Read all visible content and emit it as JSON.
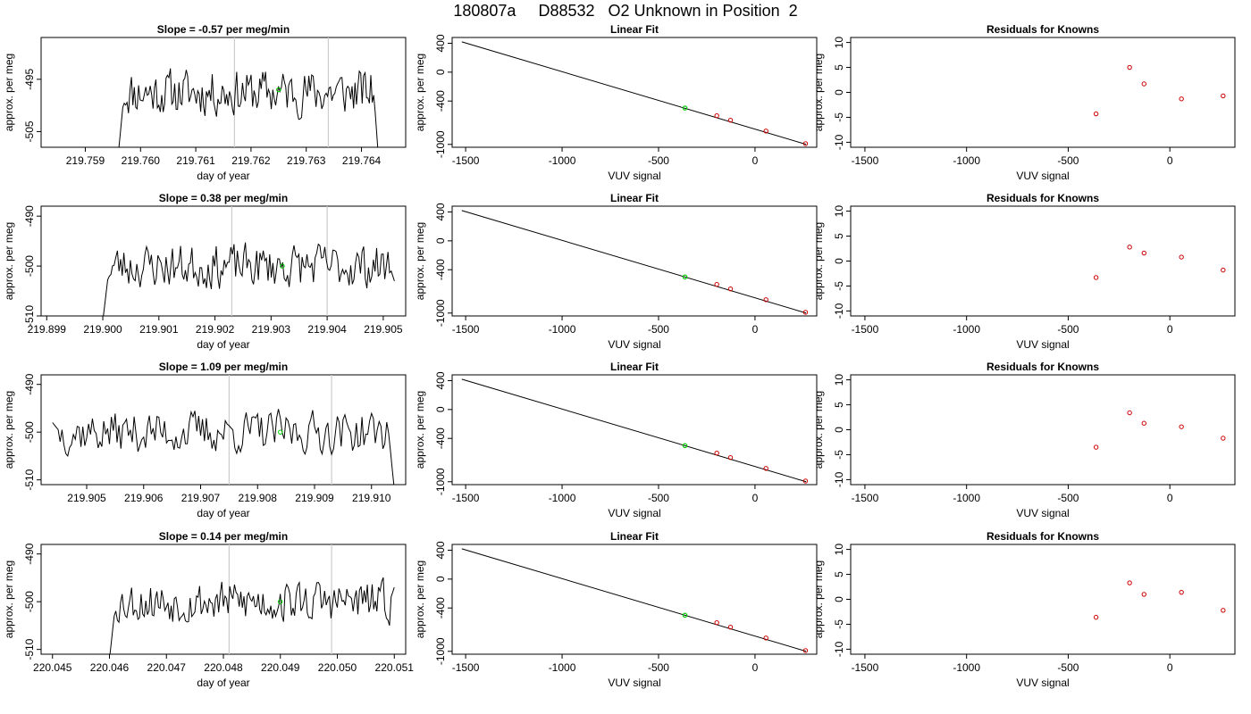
{
  "main_title": "180807a     D88532   O2 Unknown in Position  2",
  "colors": {
    "line": "#000000",
    "unknown_point": "#00cc00",
    "known_point": "#cc0000",
    "marker_line": "#cccccc"
  },
  "chart_data": [
    {
      "type": "line",
      "row": 0,
      "col": 0,
      "title": "Slope =  -0.57  per meg/min",
      "xlabel": "day of year",
      "ylabel": "approx. per meg",
      "xlim": [
        219.7582,
        219.7648
      ],
      "ylim": [
        -508,
        -487
      ],
      "xticks": [
        "219.759",
        "219.760",
        "219.761",
        "219.762",
        "219.763",
        "219.764"
      ],
      "yticks": [
        "-495",
        "-505"
      ],
      "vlines": [
        219.7617,
        219.7634
      ],
      "series_start": 219.7596,
      "series_end": 219.7643,
      "y_start": -509,
      "y_end": -509,
      "baseline": -497.5,
      "seed": 11,
      "unknown_point": {
        "x": 219.7625,
        "y": -497.0
      }
    },
    {
      "type": "line",
      "row": 1,
      "col": 0,
      "title": "Slope =  0.38  per meg/min",
      "xlabel": "day of year",
      "ylabel": "approx. per meg",
      "xlim": [
        219.8989,
        219.9054
      ],
      "ylim": [
        -510,
        -488
      ],
      "xticks": [
        "219.899",
        "219.900",
        "219.901",
        "219.902",
        "219.903",
        "219.904",
        "219.905"
      ],
      "yticks": [
        "-490",
        "-500",
        "-510"
      ],
      "vlines": [
        219.9023,
        219.904
      ],
      "series_start": 219.9,
      "series_end": 219.9052,
      "y_start": -511,
      "y_end": -503,
      "baseline": -500.0,
      "seed": 23,
      "unknown_point": {
        "x": 219.9032,
        "y": -500.0
      }
    },
    {
      "type": "line",
      "row": 2,
      "col": 0,
      "title": "Slope =  1.09  per meg/min",
      "xlabel": "day of year",
      "ylabel": "approx. per meg",
      "xlim": [
        219.9042,
        219.9106
      ],
      "ylim": [
        -511,
        -488
      ],
      "xticks": [
        "219.905",
        "219.906",
        "219.907",
        "219.908",
        "219.909",
        "219.910"
      ],
      "yticks": [
        "-490",
        "-500",
        "-510"
      ],
      "vlines": [
        219.9075,
        219.9093
      ],
      "series_start": 219.9044,
      "series_end": 219.9104,
      "y_start": -498,
      "y_end": -512,
      "baseline": -500.0,
      "seed": 37,
      "unknown_point": {
        "x": 219.9084,
        "y": -500.0
      }
    },
    {
      "type": "line",
      "row": 3,
      "col": 0,
      "title": "Slope =  0.14  per meg/min",
      "xlabel": "day of year",
      "ylabel": "approx. per meg",
      "xlim": [
        220.0448,
        220.0512
      ],
      "ylim": [
        -511,
        -488
      ],
      "xticks": [
        "220.045",
        "220.046",
        "220.047",
        "220.048",
        "220.049",
        "220.050",
        "220.051"
      ],
      "yticks": [
        "-490",
        "-500",
        "-510"
      ],
      "vlines": [
        220.0481,
        220.0499
      ],
      "series_start": 220.046,
      "series_end": 220.051,
      "y_start": -512,
      "y_end": -497,
      "baseline": -500.0,
      "seed": 53,
      "unknown_point": {
        "x": 220.049,
        "y": -500.0
      }
    },
    {
      "type": "scatter",
      "row": 0,
      "col": 1,
      "title": "Linear Fit",
      "xlabel": "VUV signal",
      "ylabel": "approx. per meg",
      "xlim": [
        -1570,
        320
      ],
      "ylim": [
        -1040,
        480
      ],
      "xticks": [
        -1500,
        -1000,
        -500,
        0
      ],
      "yticks": [
        400,
        0,
        -400,
        -1000
      ],
      "fit_line": [
        [
          -1520,
          420
        ],
        [
          265,
          -1000
        ]
      ],
      "known_points": [
        [
          -198,
          -603
        ],
        [
          -127,
          -665
        ],
        [
          57,
          -815
        ],
        [
          262,
          -990
        ]
      ],
      "unknown_point": [
        -363,
        -497
      ]
    },
    {
      "type": "scatter",
      "row": 1,
      "col": 1,
      "title": "Linear Fit",
      "xlabel": "VUV signal",
      "ylabel": "approx. per meg",
      "xlim": [
        -1570,
        320
      ],
      "ylim": [
        -1040,
        480
      ],
      "xticks": [
        -1500,
        -1000,
        -500,
        0
      ],
      "yticks": [
        400,
        0,
        -400,
        -1000
      ],
      "fit_line": [
        [
          -1520,
          420
        ],
        [
          265,
          -1000
        ]
      ],
      "known_points": [
        [
          -198,
          -603
        ],
        [
          -127,
          -665
        ],
        [
          57,
          -815
        ],
        [
          262,
          -990
        ]
      ],
      "unknown_point": [
        -363,
        -500
      ]
    },
    {
      "type": "scatter",
      "row": 2,
      "col": 1,
      "title": "Linear Fit",
      "xlabel": "VUV signal",
      "ylabel": "approx. per meg",
      "xlim": [
        -1570,
        320
      ],
      "ylim": [
        -1040,
        480
      ],
      "xticks": [
        -1500,
        -1000,
        -500,
        0
      ],
      "yticks": [
        400,
        0,
        -400,
        -1000
      ],
      "fit_line": [
        [
          -1520,
          420
        ],
        [
          265,
          -1000
        ]
      ],
      "known_points": [
        [
          -198,
          -603
        ],
        [
          -127,
          -665
        ],
        [
          57,
          -815
        ],
        [
          262,
          -990
        ]
      ],
      "unknown_point": [
        -363,
        -500
      ]
    },
    {
      "type": "scatter",
      "row": 3,
      "col": 1,
      "title": "Linear Fit",
      "xlabel": "VUV signal",
      "ylabel": "approx. per meg",
      "xlim": [
        -1570,
        320
      ],
      "ylim": [
        -1040,
        480
      ],
      "xticks": [
        -1500,
        -1000,
        -500,
        0
      ],
      "yticks": [
        400,
        0,
        -400,
        -1000
      ],
      "fit_line": [
        [
          -1520,
          420
        ],
        [
          265,
          -1000
        ]
      ],
      "known_points": [
        [
          -198,
          -603
        ],
        [
          -127,
          -665
        ],
        [
          57,
          -815
        ],
        [
          262,
          -990
        ]
      ],
      "unknown_point": [
        -363,
        -500
      ]
    },
    {
      "type": "scatter",
      "row": 0,
      "col": 2,
      "title": "Residuals for Knowns",
      "xlabel": "VUV signal",
      "ylabel": "approx. per meg",
      "xlim": [
        -1570,
        320
      ],
      "ylim": [
        -11,
        11
      ],
      "xticks": [
        -1500,
        -1000,
        -500,
        0
      ],
      "yticks": [
        10,
        5,
        0,
        -5,
        -10
      ],
      "known_points": [
        [
          -363,
          -4.3
        ],
        [
          -198,
          5.0
        ],
        [
          -127,
          1.7
        ],
        [
          57,
          -1.3
        ],
        [
          262,
          -0.7
        ]
      ]
    },
    {
      "type": "scatter",
      "row": 1,
      "col": 2,
      "title": "Residuals for Knowns",
      "xlabel": "VUV signal",
      "ylabel": "approx. per meg",
      "xlim": [
        -1570,
        320
      ],
      "ylim": [
        -11,
        11
      ],
      "xticks": [
        -1500,
        -1000,
        -500,
        0
      ],
      "yticks": [
        10,
        5,
        0,
        -5,
        -10
      ],
      "known_points": [
        [
          -363,
          -3.3
        ],
        [
          -198,
          2.8
        ],
        [
          -127,
          1.6
        ],
        [
          57,
          0.8
        ],
        [
          262,
          -1.8
        ]
      ]
    },
    {
      "type": "scatter",
      "row": 2,
      "col": 2,
      "title": "Residuals for Knowns",
      "xlabel": "VUV signal",
      "ylabel": "approx. per meg",
      "xlim": [
        -1570,
        320
      ],
      "ylim": [
        -11,
        11
      ],
      "xticks": [
        -1500,
        -1000,
        -500,
        0
      ],
      "yticks": [
        10,
        5,
        0,
        -5,
        -10
      ],
      "known_points": [
        [
          -363,
          -3.5
        ],
        [
          -198,
          3.4
        ],
        [
          -127,
          1.3
        ],
        [
          57,
          0.6
        ],
        [
          262,
          -1.7
        ]
      ]
    },
    {
      "type": "scatter",
      "row": 3,
      "col": 2,
      "title": "Residuals for Knowns",
      "xlabel": "VUV signal",
      "ylabel": "approx. per meg",
      "xlim": [
        -1570,
        320
      ],
      "ylim": [
        -11,
        11
      ],
      "xticks": [
        -1500,
        -1000,
        -500,
        0
      ],
      "yticks": [
        10,
        5,
        0,
        -5,
        -10
      ],
      "known_points": [
        [
          -363,
          -3.6
        ],
        [
          -198,
          3.3
        ],
        [
          -127,
          1.0
        ],
        [
          57,
          1.4
        ],
        [
          262,
          -2.2
        ]
      ]
    }
  ]
}
